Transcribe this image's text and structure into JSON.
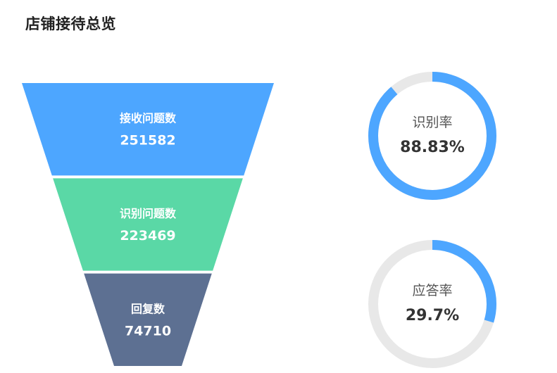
{
  "header": {
    "title": "店铺接待总览"
  },
  "chart_data": [
    {
      "type": "funnel",
      "stages": [
        {
          "label": "接收问题数",
          "value": 251582,
          "color": "#4da6ff"
        },
        {
          "label": "识别问题数",
          "value": 223469,
          "color": "#5ad8a6"
        },
        {
          "label": "回复数",
          "value": 74710,
          "color": "#5d7092"
        }
      ]
    },
    {
      "type": "gauge",
      "gauges": [
        {
          "label": "识别率",
          "value_text": "88.83%",
          "percent": 88.83,
          "color": "#4da6ff",
          "track_color": "#e8e8e8"
        },
        {
          "label": "应答率",
          "value_text": "29.7%",
          "percent": 29.7,
          "color": "#4da6ff",
          "track_color": "#e8e8e8"
        }
      ]
    }
  ]
}
